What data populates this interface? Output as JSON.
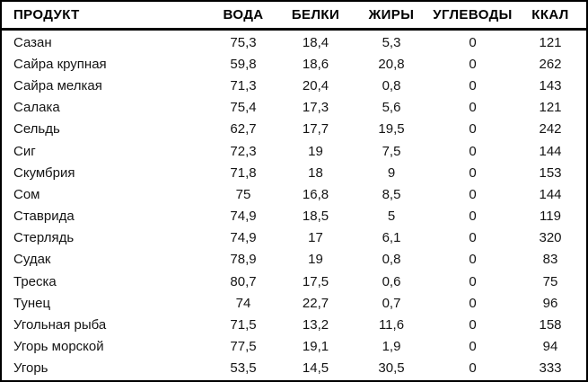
{
  "chart_data": {
    "type": "table",
    "columns": [
      "ПРОДУКТ",
      "ВОДА",
      "БЕЛКИ",
      "ЖИРЫ",
      "УГЛЕВОДЫ",
      "ККАЛ"
    ],
    "rows": [
      [
        "Сазан",
        "75,3",
        "18,4",
        "5,3",
        "0",
        "121"
      ],
      [
        "Сайра крупная",
        "59,8",
        "18,6",
        "20,8",
        "0",
        "262"
      ],
      [
        "Сайра мелкая",
        "71,3",
        "20,4",
        "0,8",
        "0",
        "143"
      ],
      [
        "Салака",
        "75,4",
        "17,3",
        "5,6",
        "0",
        "121"
      ],
      [
        "Сельдь",
        "62,7",
        "17,7",
        "19,5",
        "0",
        "242"
      ],
      [
        "Сиг",
        "72,3",
        "19",
        "7,5",
        "0",
        "144"
      ],
      [
        "Скумбрия",
        "71,8",
        "18",
        "9",
        "0",
        "153"
      ],
      [
        "Сом",
        "75",
        "16,8",
        "8,5",
        "0",
        "144"
      ],
      [
        "Ставрида",
        "74,9",
        "18,5",
        "5",
        "0",
        "119"
      ],
      [
        "Стерлядь",
        "74,9",
        "17",
        "6,1",
        "0",
        "320"
      ],
      [
        "Судак",
        "78,9",
        "19",
        "0,8",
        "0",
        "83"
      ],
      [
        "Треска",
        "80,7",
        "17,5",
        "0,6",
        "0",
        "75"
      ],
      [
        "Тунец",
        "74",
        "22,7",
        "0,7",
        "0",
        "96"
      ],
      [
        "Угольная рыба",
        "71,5",
        "13,2",
        "11,6",
        "0",
        "158"
      ],
      [
        "Угорь морской",
        "77,5",
        "19,1",
        "1,9",
        "0",
        "94"
      ],
      [
        "Угорь",
        "53,5",
        "14,5",
        "30,5",
        "0",
        "333"
      ]
    ]
  },
  "colors": {
    "background": "#ffffff",
    "border": "#000000",
    "header_text": "#000000",
    "body_text": "#141414"
  }
}
